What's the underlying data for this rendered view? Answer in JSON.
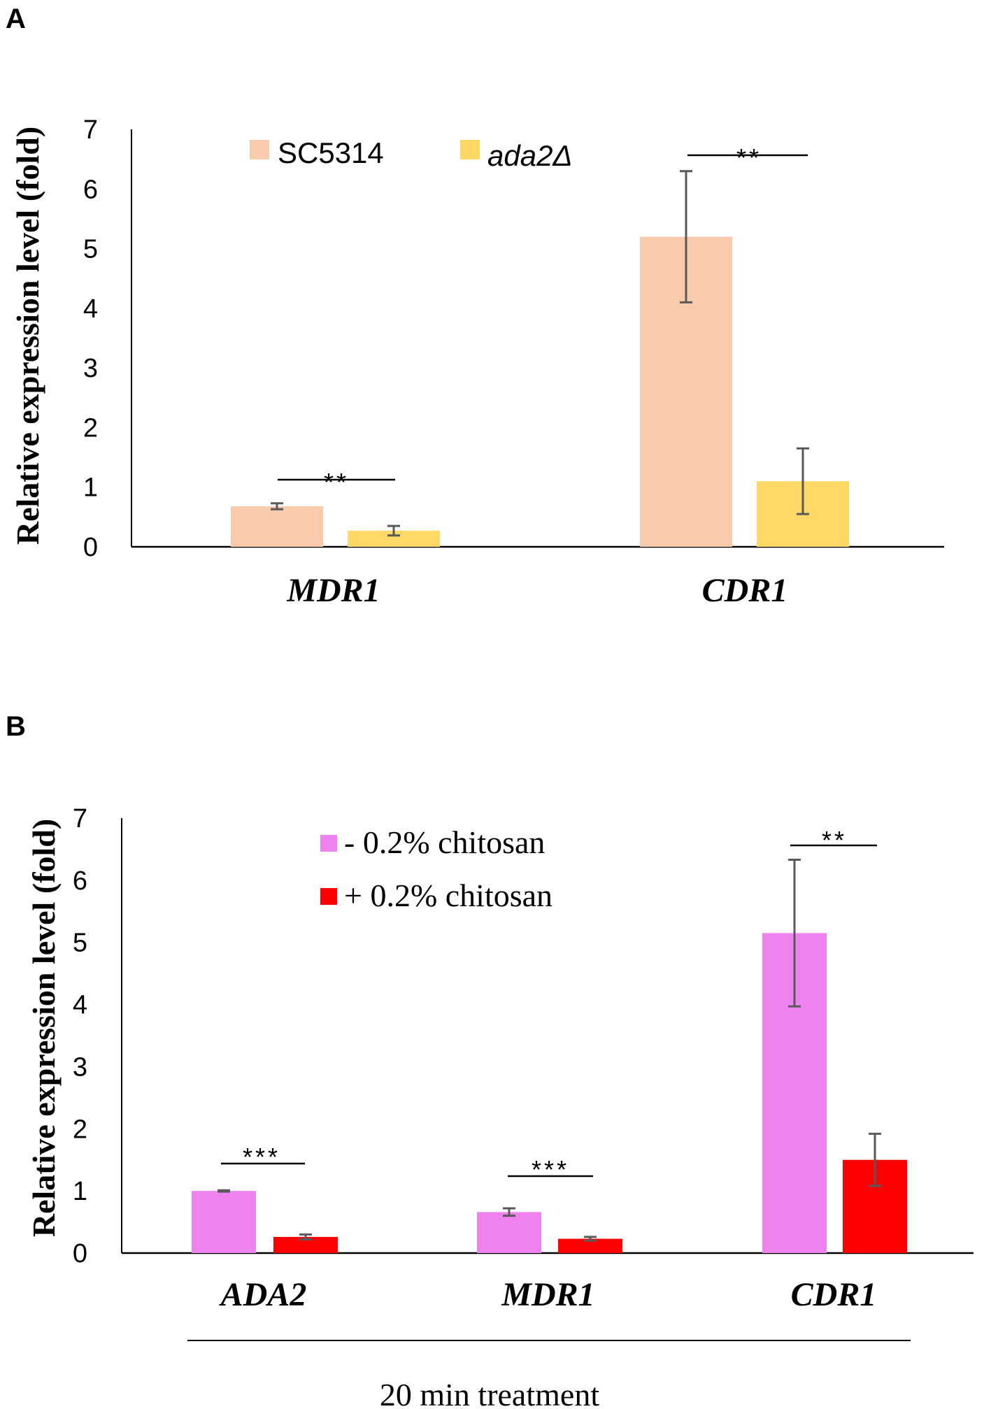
{
  "chart_data": [
    {
      "panel": "A",
      "type": "bar",
      "ylabel": "Relative expression level (fold)",
      "ylim": [
        0,
        7
      ],
      "yticks": [
        "0",
        "1",
        "2",
        "3",
        "4",
        "5",
        "6",
        "7"
      ],
      "categories": [
        "MDR1",
        "CDR1"
      ],
      "series": [
        {
          "name": "SC5314",
          "values": [
            0.68,
            5.2
          ],
          "errors": [
            0.05,
            1.1
          ],
          "color": "#f8cbad"
        },
        {
          "name": "ada2Δ",
          "values": [
            0.27,
            1.1
          ],
          "errors": [
            0.08,
            0.55
          ],
          "color": "#ffd966"
        }
      ],
      "annotations": [
        {
          "category": "MDR1",
          "text": "**"
        },
        {
          "category": "CDR1",
          "text": "**"
        }
      ],
      "legend_position": "top"
    },
    {
      "panel": "B",
      "type": "bar",
      "ylabel": "Relative expression level (fold)",
      "xlabel": "20 min treatment",
      "ylim": [
        0,
        7
      ],
      "yticks": [
        "0",
        "1",
        "2",
        "3",
        "4",
        "5",
        "6",
        "7"
      ],
      "categories": [
        "ADA2",
        "MDR1",
        "CDR1"
      ],
      "series": [
        {
          "name": "- 0.2% chitosan",
          "values": [
            1.0,
            0.66,
            5.15
          ],
          "errors": [
            0.01,
            0.06,
            1.18
          ],
          "color": "#ee82ee"
        },
        {
          "name": "+ 0.2% chitosan",
          "values": [
            0.26,
            0.23,
            1.5
          ],
          "errors": [
            0.04,
            0.03,
            0.42
          ],
          "color": "#ff0000"
        }
      ],
      "annotations": [
        {
          "category": "ADA2",
          "text": "***"
        },
        {
          "category": "MDR1",
          "text": "***"
        },
        {
          "category": "CDR1",
          "text": "**"
        }
      ],
      "legend_position": "top-left"
    }
  ]
}
